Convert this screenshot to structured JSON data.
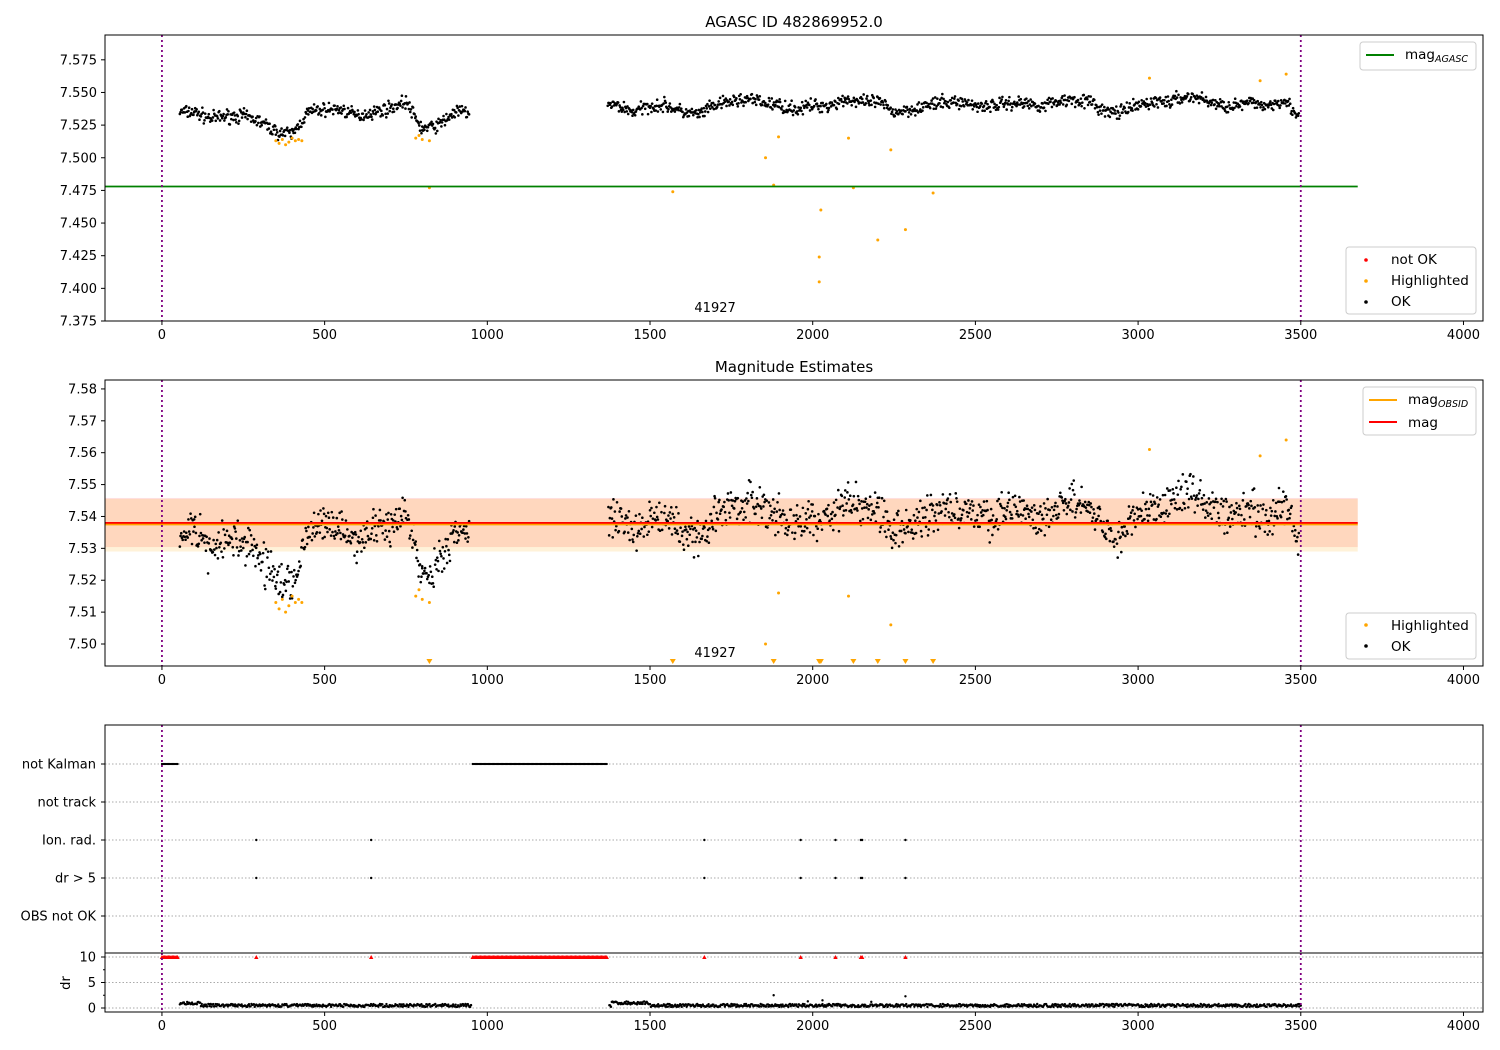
{
  "chart_data": [
    {
      "type": "scatter",
      "title": "AGASC ID 482869952.0",
      "xlim": [
        -175,
        4060
      ],
      "ylim": [
        7.375,
        7.594
      ],
      "xticks": [
        0,
        500,
        1000,
        1500,
        2000,
        2500,
        3000,
        3500,
        4000
      ],
      "yticks": [
        7.375,
        7.4,
        7.425,
        7.45,
        7.475,
        7.5,
        7.525,
        7.55,
        7.575
      ],
      "vlines": [
        0,
        3500
      ],
      "annotation": {
        "text": "41927",
        "x": 1700
      },
      "hline": {
        "name": "mag_AGASC",
        "value": 7.478,
        "x": [
          -175,
          3675
        ],
        "color": "#008000"
      },
      "legend_top": "top-right",
      "legend_bottom": [
        "not OK",
        "Highlighted",
        "OK"
      ],
      "ok_trend": [
        [
          55,
          7.535
        ],
        [
          100,
          7.535
        ],
        [
          150,
          7.53
        ],
        [
          200,
          7.532
        ],
        [
          250,
          7.532
        ],
        [
          300,
          7.528
        ],
        [
          350,
          7.52
        ],
        [
          400,
          7.518
        ],
        [
          450,
          7.535
        ],
        [
          500,
          7.537
        ],
        [
          550,
          7.537
        ],
        [
          600,
          7.532
        ],
        [
          650,
          7.535
        ],
        [
          700,
          7.538
        ],
        [
          750,
          7.543
        ],
        [
          780,
          7.53
        ],
        [
          800,
          7.522
        ],
        [
          850,
          7.525
        ],
        [
          900,
          7.535
        ],
        [
          945,
          7.535
        ],
        null,
        [
          1370,
          7.54
        ],
        [
          1400,
          7.54
        ],
        [
          1450,
          7.535
        ],
        [
          1500,
          7.54
        ],
        [
          1550,
          7.54
        ],
        [
          1600,
          7.535
        ],
        [
          1650,
          7.533
        ],
        [
          1700,
          7.54
        ],
        [
          1750,
          7.543
        ],
        [
          1800,
          7.545
        ],
        [
          1850,
          7.542
        ],
        [
          1900,
          7.54
        ],
        [
          1950,
          7.537
        ],
        [
          2000,
          7.54
        ],
        [
          2050,
          7.54
        ],
        [
          2100,
          7.545
        ],
        [
          2150,
          7.542
        ],
        [
          2200,
          7.543
        ],
        [
          2250,
          7.535
        ],
        [
          2300,
          7.537
        ],
        [
          2350,
          7.54
        ],
        [
          2400,
          7.542
        ],
        [
          2450,
          7.543
        ],
        [
          2500,
          7.54
        ],
        [
          2550,
          7.54
        ],
        [
          2600,
          7.542
        ],
        [
          2650,
          7.542
        ],
        [
          2700,
          7.54
        ],
        [
          2750,
          7.543
        ],
        [
          2800,
          7.545
        ],
        [
          2850,
          7.543
        ],
        [
          2900,
          7.535
        ],
        [
          2950,
          7.535
        ],
        [
          3000,
          7.54
        ],
        [
          3050,
          7.543
        ],
        [
          3100,
          7.543
        ],
        [
          3150,
          7.547
        ],
        [
          3200,
          7.545
        ],
        [
          3250,
          7.54
        ],
        [
          3300,
          7.54
        ],
        [
          3350,
          7.542
        ],
        [
          3400,
          7.54
        ],
        [
          3450,
          7.545
        ],
        [
          3495,
          7.53
        ]
      ],
      "highlighted": [
        [
          350,
          7.513
        ],
        [
          360,
          7.511
        ],
        [
          370,
          7.514
        ],
        [
          380,
          7.51
        ],
        [
          390,
          7.512
        ],
        [
          400,
          7.515
        ],
        [
          410,
          7.513
        ],
        [
          420,
          7.514
        ],
        [
          430,
          7.513
        ],
        [
          780,
          7.515
        ],
        [
          790,
          7.517
        ],
        [
          800,
          7.514
        ],
        [
          822,
          7.513
        ],
        [
          822,
          7.477
        ],
        [
          1570,
          7.474
        ],
        [
          1855,
          7.5
        ],
        [
          1880,
          7.479
        ],
        [
          1895,
          7.516
        ],
        [
          2025,
          7.46
        ],
        [
          2020,
          7.424
        ],
        [
          2020,
          7.405
        ],
        [
          2110,
          7.515
        ],
        [
          2125,
          7.477
        ],
        [
          2200,
          7.437
        ],
        [
          2240,
          7.506
        ],
        [
          2285,
          7.445
        ],
        [
          2370,
          7.473
        ],
        [
          3035,
          7.561
        ],
        [
          3375,
          7.559
        ],
        [
          3455,
          7.564
        ]
      ]
    },
    {
      "type": "scatter",
      "title": "Magnitude Estimates",
      "xlim": [
        -175,
        4060
      ],
      "ylim": [
        7.4931,
        7.5828
      ],
      "xticks": [
        0,
        500,
        1000,
        1500,
        2000,
        2500,
        3000,
        3500,
        4000
      ],
      "yticks": [
        7.5,
        7.51,
        7.52,
        7.53,
        7.54,
        7.55,
        7.56,
        7.57,
        7.58
      ],
      "annotation": {
        "text": "41927",
        "x": 1700
      },
      "mag": 7.538,
      "mag_obsid": 7.5375,
      "mag_band": [
        7.5304,
        7.5458
      ],
      "mag_obsid_band": [
        7.529,
        7.5455
      ],
      "x_extent": [
        -175,
        3675
      ],
      "colors": {
        "mag": "#ff0000",
        "mag_obsid": "#ffa500"
      },
      "legend_top": [
        "mag_OBSID",
        "mag"
      ],
      "legend_bottom": [
        "Highlighted",
        "OK"
      ]
    },
    {
      "type": "scatter",
      "categories": [
        "not Kalman",
        "not track",
        "Ion. rad.",
        "dr > 5",
        "OBS not OK"
      ],
      "not_kalman_ranges": [
        [
          0,
          50
        ],
        [
          955,
          1370
        ]
      ],
      "flag_times": [
        290,
        643,
        1667,
        1963,
        2070,
        2148,
        2152,
        2285
      ],
      "dr_ylabel": "dr",
      "dr_yticks": [
        0,
        5,
        10
      ],
      "dr_clip": 10,
      "dr_spikes": [
        [
          1880,
          2.5
        ],
        [
          2285,
          2.3
        ],
        [
          2030,
          1.5
        ],
        [
          1985,
          1.3
        ],
        [
          2180,
          1.2
        ]
      ]
    }
  ],
  "labels": {
    "mag_agasc": "mag",
    "mag_agasc_sub": "AGASC",
    "mag_obsid": "mag",
    "mag_obsid_sub": "OBSID",
    "mag": "mag"
  }
}
